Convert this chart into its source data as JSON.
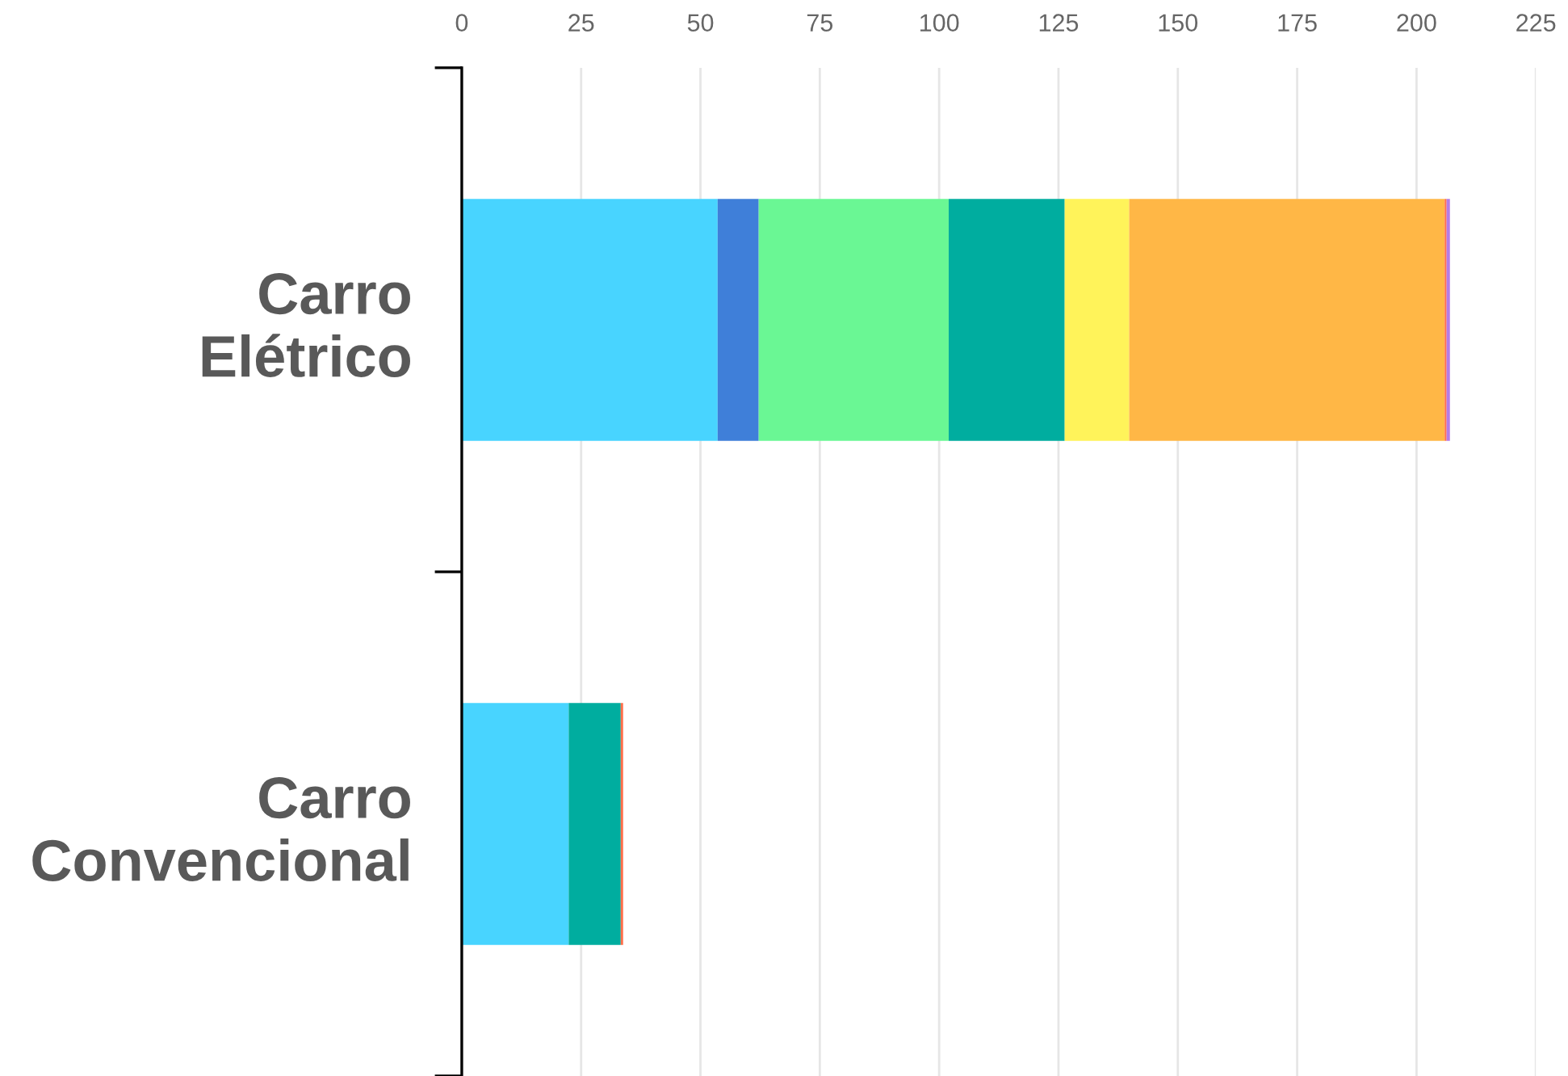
{
  "chart_data": {
    "type": "bar",
    "orientation": "horizontal",
    "stacked": true,
    "categories": [
      "Carro\nElétrico",
      "Carro\nConvencional"
    ],
    "series": [
      {
        "color": "#48d4ff",
        "values": [
          53.6,
          22.4
        ]
      },
      {
        "color": "#3f7fd9",
        "values": [
          8.6,
          null
        ]
      },
      {
        "color": "#6af794",
        "values": [
          39.8,
          null
        ]
      },
      {
        "color": "#00ad9f",
        "values": [
          24.3,
          10.9
        ]
      },
      {
        "color": "#fff35a",
        "values": [
          13.5,
          null
        ]
      },
      {
        "color": "#ffb746",
        "values": [
          66.1,
          null
        ]
      },
      {
        "color": "#ff6f4b",
        "values": [
          0.4,
          0.5
        ]
      },
      {
        "color": "#b47ce6",
        "values": [
          0.7,
          null
        ]
      }
    ],
    "xlim": [
      0,
      225
    ],
    "xticks": [
      0,
      25,
      50,
      75,
      100,
      125,
      150,
      175,
      200,
      225
    ],
    "grid": "x",
    "legend": false
  }
}
